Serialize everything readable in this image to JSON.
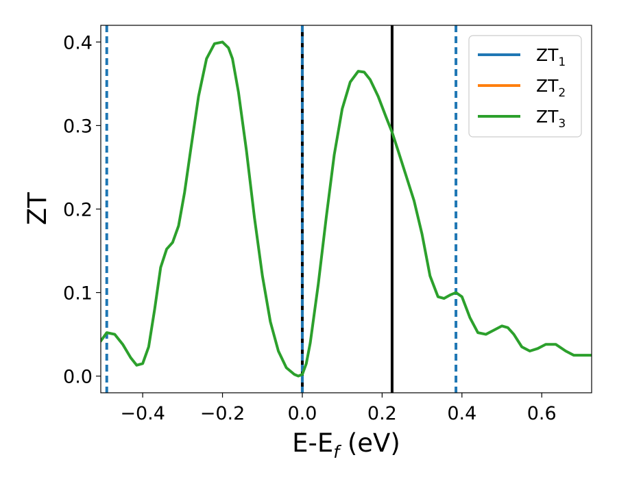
{
  "chart_data": {
    "type": "line",
    "xlabel_main": "E-E",
    "xlabel_sub": "f",
    "xlabel_tail": " (eV)",
    "ylabel": "ZT",
    "xlim": [
      -0.505,
      0.725
    ],
    "ylim": [
      -0.02,
      0.42
    ],
    "xticks": [
      -0.4,
      -0.2,
      0.0,
      0.2,
      0.4,
      0.6
    ],
    "xtick_labels": [
      "−0.4",
      "−0.2",
      "0.0",
      "0.2",
      "0.4",
      "0.6"
    ],
    "yticks": [
      0.0,
      0.1,
      0.2,
      0.3,
      0.4
    ],
    "ytick_labels": [
      "0.0",
      "0.1",
      "0.2",
      "0.3",
      "0.4"
    ],
    "legend_position": "top-right",
    "series": [
      {
        "name": "ZT",
        "name_sub": "1",
        "color": "#1f77b4"
      },
      {
        "name": "ZT",
        "name_sub": "2",
        "color": "#ff7f0e"
      },
      {
        "name": "ZT",
        "name_sub": "3",
        "color": "#2ca02c",
        "x": [
          -0.505,
          -0.49,
          -0.47,
          -0.45,
          -0.43,
          -0.415,
          -0.4,
          -0.385,
          -0.37,
          -0.355,
          -0.34,
          -0.325,
          -0.31,
          -0.295,
          -0.28,
          -0.26,
          -0.24,
          -0.22,
          -0.2,
          -0.185,
          -0.175,
          -0.16,
          -0.14,
          -0.12,
          -0.1,
          -0.08,
          -0.06,
          -0.04,
          -0.02,
          -0.01,
          0.0,
          0.01,
          0.02,
          0.04,
          0.06,
          0.08,
          0.1,
          0.12,
          0.14,
          0.155,
          0.17,
          0.19,
          0.21,
          0.225,
          0.24,
          0.26,
          0.28,
          0.3,
          0.32,
          0.34,
          0.355,
          0.37,
          0.385,
          0.4,
          0.42,
          0.44,
          0.46,
          0.48,
          0.5,
          0.515,
          0.53,
          0.55,
          0.57,
          0.59,
          0.61,
          0.635,
          0.66,
          0.68,
          0.7,
          0.725
        ],
        "values": [
          0.042,
          0.052,
          0.05,
          0.038,
          0.022,
          0.013,
          0.015,
          0.035,
          0.08,
          0.13,
          0.152,
          0.16,
          0.18,
          0.22,
          0.27,
          0.335,
          0.38,
          0.398,
          0.4,
          0.393,
          0.38,
          0.34,
          0.27,
          0.19,
          0.12,
          0.065,
          0.03,
          0.01,
          0.002,
          0.0,
          0.002,
          0.015,
          0.04,
          0.11,
          0.19,
          0.265,
          0.32,
          0.352,
          0.365,
          0.364,
          0.355,
          0.335,
          0.31,
          0.292,
          0.27,
          0.24,
          0.21,
          0.17,
          0.12,
          0.095,
          0.093,
          0.097,
          0.1,
          0.095,
          0.07,
          0.052,
          0.05,
          0.055,
          0.06,
          0.058,
          0.05,
          0.035,
          0.03,
          0.033,
          0.038,
          0.038,
          0.03,
          0.025,
          0.025,
          0.025
        ]
      }
    ],
    "vlines": [
      {
        "x": -0.49,
        "style": "dashed",
        "color": "#1f77b4"
      },
      {
        "x": 0.0,
        "style": "solid",
        "color": "#000000"
      },
      {
        "x": 0.0,
        "style": "dashed",
        "color": "#1f77b4"
      },
      {
        "x": 0.225,
        "style": "solid",
        "color": "#000000"
      },
      {
        "x": 0.385,
        "style": "dashed",
        "color": "#1f77b4"
      }
    ]
  }
}
